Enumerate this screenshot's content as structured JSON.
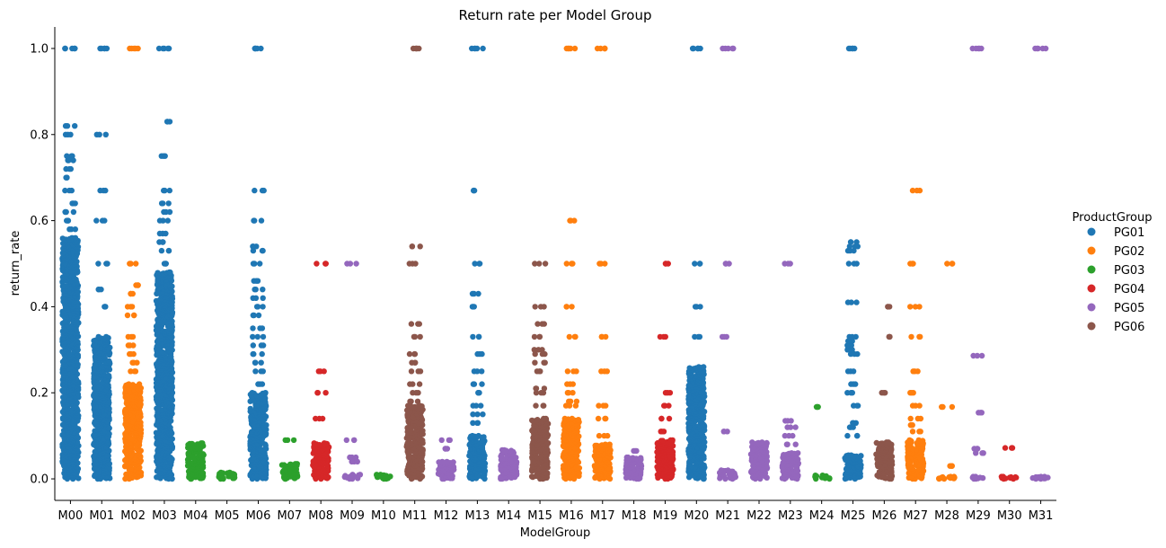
{
  "chart_data": {
    "type": "scatter",
    "title": "Return rate per Model Group",
    "xlabel": "ModelGroup",
    "ylabel": "return_rate",
    "ylim": [
      -0.05,
      1.05
    ],
    "yticks": [
      "0.0",
      "0.2",
      "0.4",
      "0.6",
      "0.8",
      "1.0"
    ],
    "categories": [
      "M00",
      "M01",
      "M02",
      "M03",
      "M04",
      "M05",
      "M06",
      "M07",
      "M08",
      "M09",
      "M10",
      "M11",
      "M12",
      "M13",
      "M14",
      "M15",
      "M16",
      "M17",
      "M18",
      "M19",
      "M20",
      "M21",
      "M22",
      "M23",
      "M24",
      "M25",
      "M26",
      "M27",
      "M28",
      "M29",
      "M30",
      "M31"
    ],
    "grid": false,
    "legend": {
      "title": "ProductGroup",
      "position": "right",
      "entries": [
        {
          "name": "PG01",
          "color": "#1f77b4"
        },
        {
          "name": "PG02",
          "color": "#ff7f0e"
        },
        {
          "name": "PG03",
          "color": "#2ca02c"
        },
        {
          "name": "PG04",
          "color": "#d62728"
        },
        {
          "name": "PG05",
          "color": "#9467bd"
        },
        {
          "name": "PG06",
          "color": "#8c564b"
        }
      ]
    },
    "series": [
      {
        "category": "M00",
        "group": "PG01",
        "dense_max": 0.56,
        "values": [
          0.58,
          0.6,
          0.62,
          0.64,
          0.67,
          0.7,
          0.72,
          0.74,
          0.75,
          0.8,
          0.82,
          1.0
        ]
      },
      {
        "category": "M01",
        "group": "PG01",
        "dense_max": 0.33,
        "values": [
          0.4,
          0.44,
          0.5,
          0.6,
          0.67,
          0.8,
          1.0
        ]
      },
      {
        "category": "M02",
        "group": "PG02",
        "dense_max": 0.22,
        "values": [
          0.25,
          0.27,
          0.29,
          0.31,
          0.33,
          0.38,
          0.4,
          0.43,
          0.45,
          0.5,
          1.0
        ]
      },
      {
        "category": "M03",
        "group": "PG01",
        "dense_max": 0.48,
        "values": [
          0.5,
          0.53,
          0.55,
          0.57,
          0.6,
          0.62,
          0.64,
          0.67,
          0.75,
          0.83,
          1.0
        ]
      },
      {
        "category": "M04",
        "group": "PG03",
        "dense_max": 0.083,
        "values": []
      },
      {
        "category": "M05",
        "group": "PG03",
        "dense_max": 0.015,
        "values": []
      },
      {
        "category": "M06",
        "group": "PG01",
        "dense_max": 0.2,
        "values": [
          0.22,
          0.25,
          0.27,
          0.29,
          0.31,
          0.33,
          0.35,
          0.38,
          0.4,
          0.42,
          0.44,
          0.46,
          0.5,
          0.53,
          0.54,
          0.6,
          0.67,
          1.0
        ]
      },
      {
        "category": "M07",
        "group": "PG03",
        "dense_max": 0.035,
        "values": [
          0.09
        ]
      },
      {
        "category": "M08",
        "group": "PG04",
        "dense_max": 0.083,
        "values": [
          0.14,
          0.2,
          0.25,
          0.5
        ]
      },
      {
        "category": "M09",
        "group": "PG05",
        "dense_max": 0.01,
        "values": [
          0.04,
          0.05,
          0.09,
          0.5
        ]
      },
      {
        "category": "M10",
        "group": "PG03",
        "dense_max": 0.01,
        "values": []
      },
      {
        "category": "M11",
        "group": "PG06",
        "dense_max": 0.17,
        "values": [
          0.18,
          0.2,
          0.22,
          0.25,
          0.27,
          0.29,
          0.33,
          0.36,
          0.5,
          0.54,
          1.0
        ]
      },
      {
        "category": "M12",
        "group": "PG05",
        "dense_max": 0.04,
        "values": [
          0.07,
          0.09
        ]
      },
      {
        "category": "M13",
        "group": "PG01",
        "dense_max": 0.1,
        "values": [
          0.13,
          0.15,
          0.17,
          0.2,
          0.22,
          0.25,
          0.29,
          0.33,
          0.4,
          0.43,
          0.5,
          0.67,
          1.0
        ]
      },
      {
        "category": "M14",
        "group": "PG05",
        "dense_max": 0.067,
        "values": []
      },
      {
        "category": "M15",
        "group": "PG06",
        "dense_max": 0.14,
        "values": [
          0.17,
          0.2,
          0.21,
          0.25,
          0.27,
          0.29,
          0.3,
          0.33,
          0.36,
          0.4,
          0.5
        ]
      },
      {
        "category": "M16",
        "group": "PG02",
        "dense_max": 0.14,
        "values": [
          0.17,
          0.18,
          0.2,
          0.22,
          0.25,
          0.33,
          0.4,
          0.5,
          0.6,
          1.0
        ]
      },
      {
        "category": "M17",
        "group": "PG02",
        "dense_max": 0.08,
        "values": [
          0.1,
          0.14,
          0.17,
          0.25,
          0.33,
          0.5,
          1.0
        ]
      },
      {
        "category": "M18",
        "group": "PG05",
        "dense_max": 0.05,
        "values": [
          0.065
        ]
      },
      {
        "category": "M19",
        "group": "PG04",
        "dense_max": 0.09,
        "values": [
          0.11,
          0.14,
          0.17,
          0.2,
          0.33,
          0.5
        ]
      },
      {
        "category": "M20",
        "group": "PG01",
        "dense_max": 0.26,
        "values": [
          0.33,
          0.4,
          0.5,
          1.0
        ]
      },
      {
        "category": "M21",
        "group": "PG05",
        "dense_max": 0.02,
        "values": [
          0.11,
          0.33,
          0.5,
          1.0
        ]
      },
      {
        "category": "M22",
        "group": "PG05",
        "dense_max": 0.085,
        "values": []
      },
      {
        "category": "M23",
        "group": "PG05",
        "dense_max": 0.06,
        "values": [
          0.08,
          0.1,
          0.12,
          0.135,
          0.5
        ]
      },
      {
        "category": "M24",
        "group": "PG03",
        "dense_max": 0.008,
        "values": [
          0.167
        ]
      },
      {
        "category": "M25",
        "group": "PG01",
        "dense_max": 0.055,
        "values": [
          0.1,
          0.12,
          0.13,
          0.17,
          0.2,
          0.22,
          0.25,
          0.29,
          0.3,
          0.31,
          0.32,
          0.33,
          0.41,
          0.5,
          0.53,
          0.54,
          0.55,
          1.0
        ]
      },
      {
        "category": "M26",
        "group": "PG06",
        "dense_max": 0.085,
        "values": [
          0.2,
          0.33,
          0.4
        ]
      },
      {
        "category": "M27",
        "group": "PG02",
        "dense_max": 0.09,
        "values": [
          0.11,
          0.125,
          0.14,
          0.17,
          0.2,
          0.25,
          0.33,
          0.4,
          0.5,
          0.67
        ]
      },
      {
        "category": "M28",
        "group": "PG02",
        "dense_max": 0.005,
        "values": [
          0.03,
          0.167,
          0.5
        ]
      },
      {
        "category": "M29",
        "group": "PG05",
        "dense_max": 0.005,
        "values": [
          0.06,
          0.07,
          0.154,
          0.286,
          1.0
        ]
      },
      {
        "category": "M30",
        "group": "PG04",
        "dense_max": 0.005,
        "values": [
          0.072
        ]
      },
      {
        "category": "M31",
        "group": "PG05",
        "dense_max": 0.005,
        "values": [
          1.0
        ]
      }
    ]
  }
}
